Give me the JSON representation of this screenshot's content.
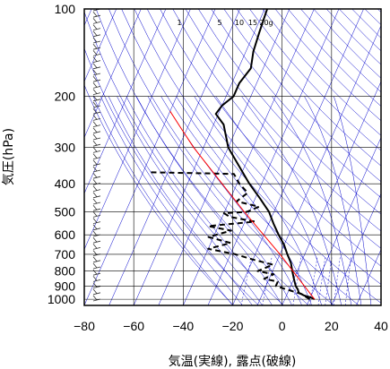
{
  "chart_data": {
    "type": "line",
    "subtype": "skew-t log-p diagram (skewed temperature axis, logarithmic pressure axis)",
    "xlabel": "気温(実線), 露点(破線)",
    "ylabel": "気圧(hPa)",
    "xlim": [
      -80,
      40
    ],
    "ylim": [
      1050,
      100
    ],
    "yscale": "log",
    "x_ticks": [
      -80,
      -60,
      -40,
      -20,
      0,
      20,
      40
    ],
    "x_tick_labels": [
      "−80",
      "−60",
      "−40",
      "−20",
      "0",
      "20",
      "40"
    ],
    "y_ticks": [
      1000,
      900,
      800,
      700,
      600,
      500,
      400,
      300,
      200,
      100
    ],
    "y_tick_labels": [
      "1000",
      "900",
      "800",
      "700",
      "600",
      "500",
      "400",
      "300",
      "200",
      "100"
    ],
    "mixing_ratio_labels": [
      "1",
      "5",
      "10",
      "15",
      "20g"
    ],
    "grid": true,
    "colors": {
      "temperature": "#000000",
      "dewpoint": "#000000",
      "parcel": "#ff0000",
      "background_lines": "#0000cc",
      "grid": "#000000"
    },
    "series": [
      {
        "style": "solid",
        "points": [
          {
            "p": 1000,
            "t": 12
          },
          {
            "p": 985,
            "t": 10
          },
          {
            "p": 970,
            "t": 7
          },
          {
            "p": 950,
            "t": 4.5
          },
          {
            "p": 925,
            "t": 3.5
          },
          {
            "p": 900,
            "t": 2
          },
          {
            "p": 850,
            "t": 0
          },
          {
            "p": 800,
            "t": -2
          },
          {
            "p": 750,
            "t": -4
          },
          {
            "p": 700,
            "t": -7
          },
          {
            "p": 650,
            "t": -10
          },
          {
            "p": 600,
            "t": -14
          },
          {
            "p": 550,
            "t": -18
          },
          {
            "p": 500,
            "t": -22
          },
          {
            "p": 450,
            "t": -28
          },
          {
            "p": 400,
            "t": -35
          },
          {
            "p": 350,
            "t": -42
          },
          {
            "p": 300,
            "t": -50
          },
          {
            "p": 250,
            "t": -56
          },
          {
            "p": 230,
            "t": -61
          },
          {
            "p": 215,
            "t": -60
          },
          {
            "p": 200,
            "t": -57
          },
          {
            "p": 180,
            "t": -57
          },
          {
            "p": 160,
            "t": -55
          },
          {
            "p": 140,
            "t": -57
          },
          {
            "p": 120,
            "t": -58
          },
          {
            "p": 100,
            "t": -59
          }
        ]
      },
      {
        "style": "dashed",
        "points": [
          {
            "p": 1000,
            "t": 10
          },
          {
            "p": 980,
            "t": 8
          },
          {
            "p": 960,
            "t": 6
          },
          {
            "p": 940,
            "t": 2
          },
          {
            "p": 920,
            "t": -2
          },
          {
            "p": 900,
            "t": -6
          },
          {
            "p": 870,
            "t": -6
          },
          {
            "p": 850,
            "t": -12
          },
          {
            "p": 820,
            "t": -9
          },
          {
            "p": 800,
            "t": -16
          },
          {
            "p": 760,
            "t": -11
          },
          {
            "p": 730,
            "t": -20
          },
          {
            "p": 700,
            "t": -28
          },
          {
            "p": 670,
            "t": -40
          },
          {
            "p": 640,
            "t": -32
          },
          {
            "p": 610,
            "t": -42
          },
          {
            "p": 580,
            "t": -34
          },
          {
            "p": 560,
            "t": -44
          },
          {
            "p": 540,
            "t": -26
          },
          {
            "p": 520,
            "t": -37
          },
          {
            "p": 505,
            "t": -40
          },
          {
            "p": 500,
            "t": -31
          },
          {
            "p": 480,
            "t": -27
          },
          {
            "p": 460,
            "t": -37
          },
          {
            "p": 430,
            "t": -34
          },
          {
            "p": 400,
            "t": -39
          },
          {
            "p": 370,
            "t": -43
          },
          {
            "p": 365,
            "t": -78
          }
        ]
      },
      {
        "style": "solid-red",
        "points": [
          {
            "p": 1000,
            "t": 12
          },
          {
            "p": 700,
            "t": -10
          },
          {
            "p": 500,
            "t": -32
          },
          {
            "p": 400,
            "t": -46
          },
          {
            "p": 300,
            "t": -64
          },
          {
            "p": 260,
            "t": -72
          },
          {
            "p": 225,
            "t": -80
          }
        ]
      }
    ]
  }
}
